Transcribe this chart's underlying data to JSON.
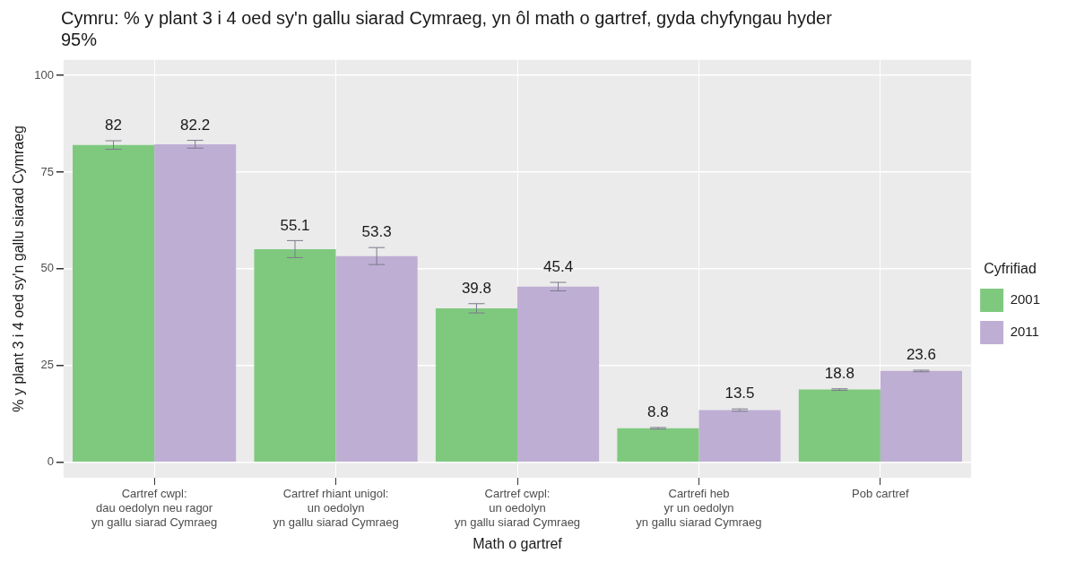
{
  "chart_data": {
    "type": "bar",
    "title": "Cymru: % y plant 3 i 4 oed sy'n gallu siarad Cymraeg, yn ôl math o gartref, gyda chyfyngau hyder 95%",
    "xlabel": "Math o gartref",
    "ylabel": "% y plant 3 i 4 oed sy'n gallu siarad Cymraeg",
    "legend_title": "Cyfrifiad",
    "categories": [
      "Cartref cwpl:\ndau oedolyn neu ragor\nyn gallu siarad Cymraeg",
      "Cartref rhiant unigol:\nun oedolyn\nyn gallu siarad Cymraeg",
      "Cartref cwpl:\nun oedolyn\nyn gallu siarad Cymraeg",
      "Cartrefi heb\nyr un oedolyn\nyn gallu siarad Cymraeg",
      "Pob cartref"
    ],
    "series": [
      {
        "name": "2001",
        "color": "#7fc97f",
        "values": [
          82,
          55.1,
          39.8,
          8.8,
          18.8
        ],
        "errors": [
          1.1,
          2.2,
          1.2,
          0.2,
          0.2
        ]
      },
      {
        "name": "2011",
        "color": "#beaed4",
        "values": [
          82.2,
          53.3,
          45.4,
          13.5,
          23.6
        ],
        "errors": [
          1.0,
          2.2,
          1.1,
          0.3,
          0.2
        ]
      }
    ],
    "ylim": [
      -4,
      104
    ],
    "yticks": [
      0,
      25,
      50,
      75,
      100
    ],
    "grid": true,
    "legend": "right",
    "data_labels": true
  }
}
